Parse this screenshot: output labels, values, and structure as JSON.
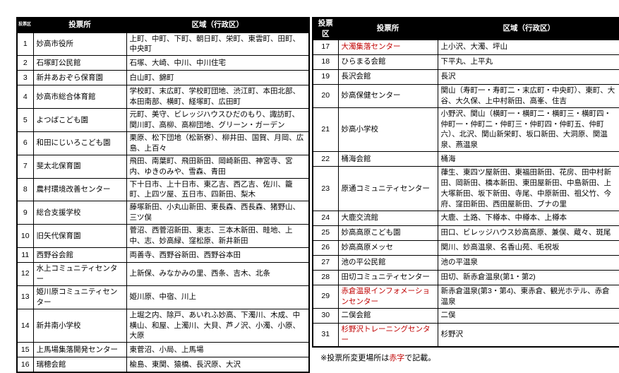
{
  "colors": {
    "accent_red": "#c00000",
    "header_bg": "#000000",
    "header_fg": "#ffffff"
  },
  "note": {
    "prefix": "※投票所変更場所は",
    "red_word": "赤字",
    "suffix": "で記載。"
  },
  "tables": [
    {
      "headers": [
        "投票区",
        "投票所",
        "区域（行政区）"
      ],
      "rows": [
        {
          "no": "1",
          "place": "妙高市役所",
          "red": false,
          "area": "上町、中町、下町、朝日町、栄町、東雲町、田町、中央町"
        },
        {
          "no": "2",
          "place": "石塚町公民館",
          "red": false,
          "area": "石塚、大崎、中川、中川住宅"
        },
        {
          "no": "3",
          "place": "新井あおぞら保育園",
          "red": false,
          "area": "白山町、錦町"
        },
        {
          "no": "4",
          "place": "妙高市総合体育館",
          "red": false,
          "area": "学校町、末広町、学校町団地、渋江町、本田北部、本田南部、横町、経塚町、広田町"
        },
        {
          "no": "5",
          "place": "よつばこども園",
          "red": false,
          "area": "元町、美守、ビレッジハウスひだのもり、諏訪町、関川町、高柳、高柳団地、グリーン・ガーデン"
        },
        {
          "no": "6",
          "place": "和田にじいろこども園",
          "red": false,
          "area": "栗原、松下団地（松新寮）、柳井田、国賀、月岡、広島、上百々"
        },
        {
          "no": "7",
          "place": "斐太北保育園",
          "red": false,
          "area": "飛田、南葉町、飛田新田、岡崎新田、神宮寺、宮内、ゆきのみや、雪森、青田"
        },
        {
          "no": "8",
          "place": "農村環境改善センター",
          "red": false,
          "area": "下十日市、上十日市、東乙吉、西乙吉、佐川、籠町、上四ツ屋、五日市、四新田、梨木"
        },
        {
          "no": "9",
          "place": "総合支援学校",
          "red": false,
          "area": "藤塚新田、小丸山新田、東長森、西長森、猪野山、三ツ俣"
        },
        {
          "no": "10",
          "place": "旧矢代保育園",
          "red": false,
          "area": "菅沼、西菅沼新田、東志、三本木新田、畦地、上中、志、妙高緑、窪松原、新井新田"
        },
        {
          "no": "11",
          "place": "西野谷会館",
          "red": false,
          "area": "両善寺、西野谷新田、西野谷本田"
        },
        {
          "no": "12",
          "place": "水上コミュニティセンター",
          "red": false,
          "area": "上新保、みなかみの里、西条、吉木、北条"
        },
        {
          "no": "13",
          "place": "姫川原コミュニティセンター",
          "red": false,
          "area": "姫川原、中宿、川上"
        },
        {
          "no": "14",
          "place": "新井南小学校",
          "red": false,
          "area": "上堀之内、除戸、あいれふ妙高、下濁川、木成、中横山、和屋、上濁川、大貝、芦ノ沢、小濁、小原、大原"
        },
        {
          "no": "15",
          "place": "上馬場集落開発センター",
          "red": false,
          "area": "東菅沼、小局、上馬場"
        },
        {
          "no": "16",
          "place": "瑞穂会館",
          "red": false,
          "area": "楡島、東関、猿橋、長沢原、大沢"
        }
      ]
    },
    {
      "headers": [
        "投票区",
        "投票所",
        "区域（行政区）"
      ],
      "rows": [
        {
          "no": "17",
          "place": "大濁集落センター",
          "red": true,
          "area": "上小沢、大濁、坪山"
        },
        {
          "no": "18",
          "place": "ひらまる会館",
          "red": false,
          "area": "下平丸、上平丸"
        },
        {
          "no": "19",
          "place": "長沢会館",
          "red": false,
          "area": "長沢"
        },
        {
          "no": "20",
          "place": "妙高保健センター",
          "red": false,
          "area": "関山（寿町一・寿町二・末広町・中央町）、東町、大谷、大久保、上中村新田、高峯、住吉"
        },
        {
          "no": "21",
          "place": "妙高小学校",
          "red": false,
          "area": "小野沢、関山（横町一・横町二・横町三・横町四・仲町一・仲町二・仲町三・仲町四・仲町五、仲町六）、北沢、関山新栄町、坂口新田、大洞原、関温泉、燕温泉"
        },
        {
          "no": "22",
          "place": "桶海会館",
          "red": false,
          "area": "桶海"
        },
        {
          "no": "23",
          "place": "原通コミュニティセンター",
          "red": false,
          "area": "葎生、東四ツ屋新田、東福田新田、花房、田中村新田、岡新田、橋本新田、東田屋新田、中島新田、上大塚新田、坂下新田、寺尾、中原新田、祖父竹、今府、窪田新田、西田屋新田、ブナの里"
        },
        {
          "no": "24",
          "place": "大鹿交流館",
          "red": false,
          "area": "大鹿、土路、下樽本、中樽本、上樽本"
        },
        {
          "no": "25",
          "place": "妙高高原こども園",
          "red": false,
          "area": "田口、ビレッジハウス妙高高原、兼俣、蔵々、斑尾"
        },
        {
          "no": "26",
          "place": "妙高高原メッセ",
          "red": false,
          "area": "関川、妙高温泉、名香山苑、毛祝坂"
        },
        {
          "no": "27",
          "place": "池の平公民館",
          "red": false,
          "area": "池の平温泉"
        },
        {
          "no": "28",
          "place": "田切コミュニティセンター",
          "red": false,
          "area": "田切、新赤倉温泉(第1・第2)"
        },
        {
          "no": "29",
          "place": "赤倉温泉インフォメーションセンター",
          "red": true,
          "area": "新赤倉温泉(第3・第4)、東赤倉、観光ホテル、赤倉温泉"
        },
        {
          "no": "30",
          "place": "二俣会館",
          "red": false,
          "area": "二俣"
        },
        {
          "no": "31",
          "place": "杉野沢トレーニングセンター",
          "red": true,
          "area": "杉野沢"
        }
      ]
    }
  ]
}
